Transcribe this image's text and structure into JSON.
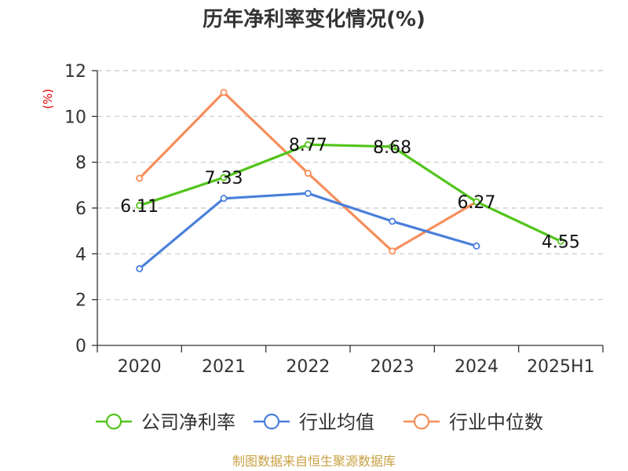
{
  "chart_data": {
    "type": "line",
    "title": "历年净利率变化情况(%)",
    "ylabel": "(%)",
    "xlabel": "",
    "categories": [
      "2020",
      "2021",
      "2022",
      "2023",
      "2024",
      "2025H1"
    ],
    "ylim": [
      0,
      12
    ],
    "yticks": [
      0,
      2,
      4,
      6,
      8,
      10,
      12
    ],
    "grid": true,
    "legend_position": "bottom",
    "series": [
      {
        "name": "公司净利率",
        "color": "#52c41a",
        "values": [
          6.11,
          7.33,
          8.77,
          8.68,
          6.27,
          4.55
        ],
        "labels": [
          "6.11",
          "7.33",
          "8.77",
          "8.68",
          "6.27",
          "4.55"
        ]
      },
      {
        "name": "行业均值",
        "color": "#4a7fdb",
        "values": [
          3.35,
          6.42,
          6.64,
          5.42,
          4.34,
          null
        ]
      },
      {
        "name": "行业中位数",
        "color": "#f78e5a",
        "values": [
          7.3,
          11.05,
          7.52,
          4.12,
          6.27,
          null
        ]
      }
    ]
  },
  "source_text": "制图数据来自恒生聚源数据库"
}
